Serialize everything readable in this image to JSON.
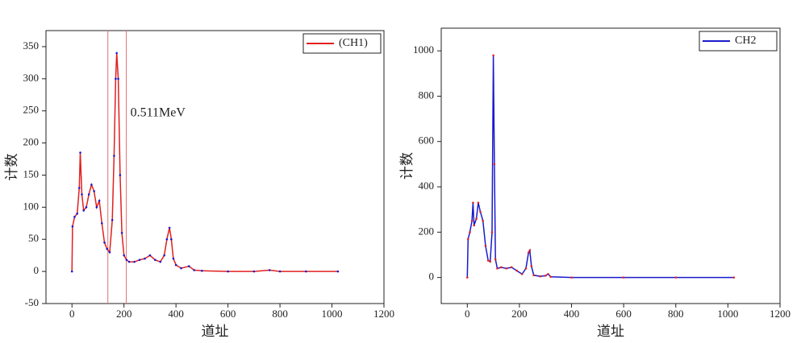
{
  "chart_data": [
    {
      "type": "line",
      "xlabel": "道址",
      "ylabel": "计数",
      "xlim": [
        -100,
        1200
      ],
      "xticks": [
        0,
        200,
        400,
        600,
        800,
        1000,
        1200
      ],
      "ylim": [
        -50,
        375
      ],
      "yticks": [
        -50,
        0,
        50,
        100,
        150,
        200,
        250,
        300,
        350
      ],
      "x": [
        0,
        2,
        10,
        20,
        28,
        32,
        38,
        45,
        55,
        65,
        75,
        85,
        95,
        105,
        115,
        125,
        135,
        145,
        155,
        162,
        168,
        172,
        178,
        185,
        192,
        200,
        210,
        220,
        240,
        260,
        280,
        300,
        320,
        340,
        355,
        365,
        375,
        382,
        390,
        400,
        420,
        450,
        470,
        500,
        600,
        700,
        760,
        800,
        900,
        1023
      ],
      "series": [
        {
          "name": "(CH1)",
          "color": "#e0201f",
          "marker_color": "#1a1acc",
          "values": [
            0,
            70,
            85,
            90,
            130,
            185,
            120,
            95,
            100,
            120,
            135,
            125,
            100,
            110,
            75,
            45,
            35,
            30,
            80,
            180,
            300,
            340,
            300,
            150,
            60,
            25,
            18,
            15,
            15,
            18,
            20,
            25,
            18,
            15,
            25,
            50,
            68,
            50,
            20,
            10,
            5,
            8,
            2,
            1,
            0,
            0,
            2,
            0,
            0,
            0
          ]
        }
      ],
      "vlines": [
        138,
        209
      ],
      "vline_color": "#e07070",
      "annotation": "0.511MeV",
      "legend": "upper right"
    },
    {
      "type": "line",
      "xlabel": "道址",
      "ylabel": "计数",
      "xlim": [
        -100,
        1200
      ],
      "xticks": [
        0,
        200,
        400,
        600,
        800,
        1000,
        1200
      ],
      "ylim": [
        -115,
        1100
      ],
      "yticks": [
        0,
        200,
        400,
        600,
        800,
        1000
      ],
      "x": [
        0,
        3,
        10,
        18,
        22,
        26,
        35,
        42,
        50,
        60,
        70,
        80,
        88,
        95,
        100,
        104,
        108,
        115,
        130,
        150,
        170,
        190,
        210,
        225,
        235,
        240,
        246,
        255,
        280,
        300,
        310,
        320,
        400,
        600,
        800,
        1023
      ],
      "series": [
        {
          "name": "CH2",
          "color": "#1a1acc",
          "marker_color": "#e0201f",
          "values": [
            0,
            170,
            200,
            250,
            330,
            230,
            260,
            330,
            290,
            250,
            140,
            75,
            70,
            200,
            980,
            500,
            80,
            40,
            45,
            40,
            45,
            30,
            15,
            40,
            110,
            120,
            50,
            10,
            5,
            8,
            15,
            3,
            0,
            0,
            0,
            0
          ]
        }
      ],
      "legend": "upper right"
    }
  ]
}
